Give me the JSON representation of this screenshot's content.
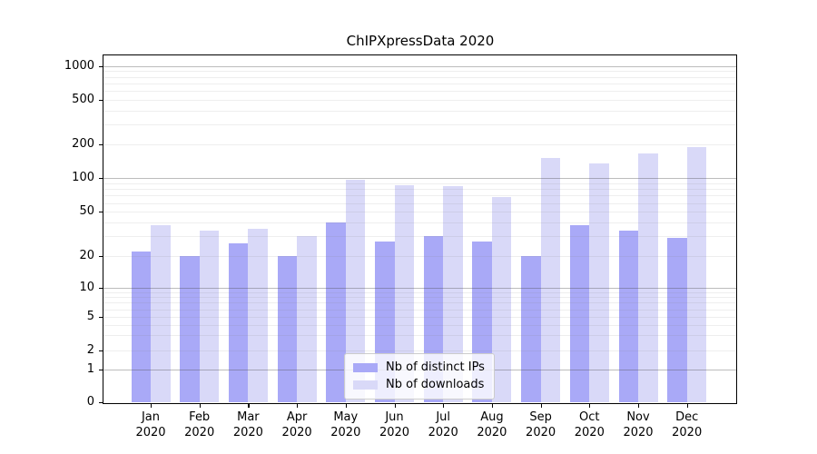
{
  "title": "ChIPXpressData 2020",
  "chart_data": {
    "type": "bar",
    "title": "ChIPXpressData 2020",
    "categories": [
      "Jan",
      "Feb",
      "Mar",
      "Apr",
      "May",
      "Jun",
      "Jul",
      "Aug",
      "Sep",
      "Oct",
      "Nov",
      "Dec"
    ],
    "x_tick_year": "2020",
    "series": [
      {
        "name": "Nb of distinct IPs",
        "color": "#a9a9f7",
        "values": [
          22,
          20,
          26,
          20,
          40,
          27,
          30,
          27,
          20,
          38,
          34,
          29
        ]
      },
      {
        "name": "Nb of downloads",
        "color": "#d9d9f8",
        "values": [
          38,
          34,
          35,
          30,
          97,
          87,
          85,
          68,
          150,
          135,
          165,
          190
        ]
      }
    ],
    "yscale": "symlog",
    "y_ticks": [
      0,
      1,
      2,
      5,
      10,
      20,
      50,
      100,
      200,
      500,
      1000
    ],
    "ylim": [
      0,
      1000
    ],
    "grid": true,
    "legend_position": "lower center",
    "colors": {
      "bar_dark": "#a9a9f7",
      "bar_light": "#d9d9f8",
      "grid_major": "#c3c3c3",
      "grid_minor": "#eaeaea",
      "axis": "#000000",
      "legend_border": "#cccccc"
    }
  }
}
